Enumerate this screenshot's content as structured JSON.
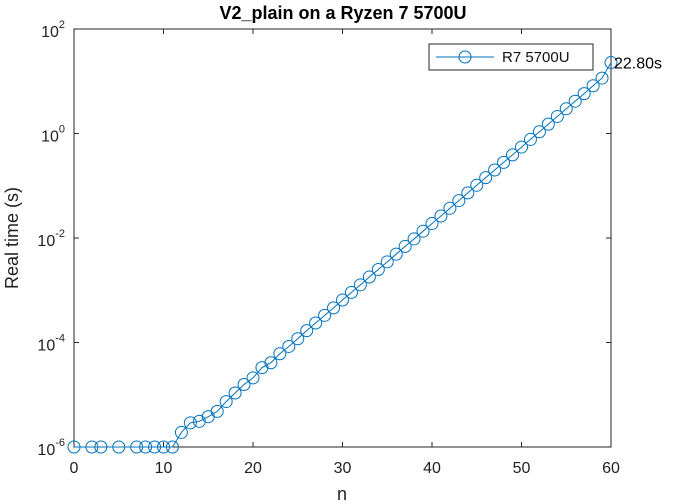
{
  "chart_data": {
    "type": "line",
    "title": "V2_plain on a Ryzen 7 5700U",
    "xlabel": "n",
    "ylabel": "Real time (s)",
    "xlim": [
      0,
      60
    ],
    "ylim": [
      1e-06,
      100
    ],
    "yscale": "log",
    "grid": false,
    "legend_position": "top-right",
    "x_ticks": [
      0,
      10,
      20,
      30,
      40,
      50,
      60
    ],
    "y_ticks": [
      {
        "value": 1e-06,
        "base": "10",
        "exp": "-6"
      },
      {
        "value": 0.0001,
        "base": "10",
        "exp": "-4"
      },
      {
        "value": 0.01,
        "base": "10",
        "exp": "-2"
      },
      {
        "value": 1,
        "base": "10",
        "exp": "0"
      },
      {
        "value": 100,
        "base": "10",
        "exp": "2"
      }
    ],
    "series": [
      {
        "name": "R7 5700U",
        "color": "#0072BD",
        "marker": "circle",
        "x": [
          0,
          2,
          3,
          5,
          7,
          8,
          9,
          10,
          11,
          12,
          13,
          14,
          15,
          16,
          17,
          18,
          19,
          20,
          21,
          22,
          23,
          24,
          25,
          26,
          27,
          28,
          29,
          30,
          31,
          32,
          33,
          34,
          35,
          36,
          37,
          38,
          39,
          40,
          41,
          42,
          43,
          44,
          45,
          46,
          47,
          48,
          49,
          50,
          51,
          52,
          53,
          54,
          55,
          56,
          57,
          58,
          59,
          60
        ],
        "y": [
          1e-06,
          1e-06,
          1e-06,
          1e-06,
          1e-06,
          1e-06,
          1e-06,
          1e-06,
          1e-06,
          1.9e-06,
          2.9e-06,
          3.1e-06,
          3.8e-06,
          4.8e-06,
          7.4e-06,
          1.08e-05,
          1.57e-05,
          2.1e-05,
          3.3e-05,
          4.1e-05,
          6.1e-05,
          8.4e-05,
          0.000118,
          0.000169,
          0.000236,
          0.000331,
          0.00046,
          0.00065,
          0.00091,
          0.00127,
          0.00179,
          0.0025,
          0.0035,
          0.0049,
          0.0069,
          0.0096,
          0.0135,
          0.0189,
          0.0264,
          0.037,
          0.052,
          0.073,
          0.102,
          0.143,
          0.2,
          0.28,
          0.39,
          0.55,
          0.77,
          1.08,
          1.51,
          2.12,
          2.97,
          4.15,
          5.8,
          8.2,
          11.5,
          22.8
        ]
      }
    ],
    "annotations": [
      {
        "text": "22.80s",
        "x": 60,
        "y": 22.8
      }
    ]
  }
}
